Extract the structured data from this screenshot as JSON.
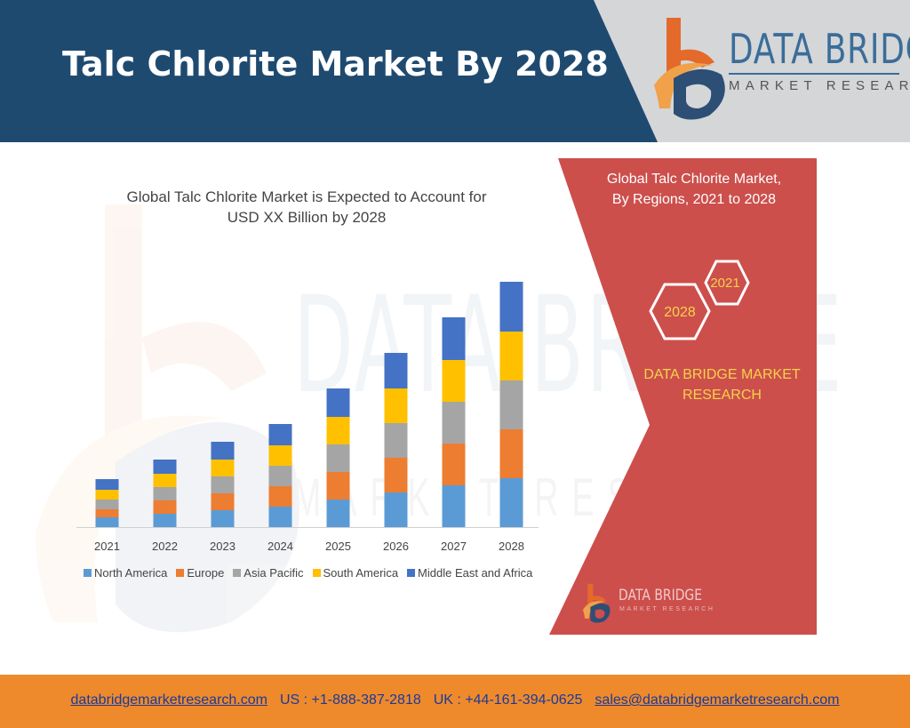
{
  "header": {
    "title": "Talc Chlorite Market By 2028",
    "brand_main": "DATA BRIDGE",
    "brand_sub": "MARKET RESEARCH"
  },
  "colors": {
    "header_band": "#1f4a70",
    "accent_orange": "#ee8a2c",
    "panel_red": "#cc4f4c",
    "panel_brand_text": "#f5d24a"
  },
  "chart_data": {
    "type": "bar",
    "stacked": true,
    "title": "Global Talc Chlorite Market is Expected to Account for USD XX Billion by 2028",
    "title_lines": [
      "Global Talc Chlorite Market is Expected to Account for",
      "USD XX Billion by 2028"
    ],
    "categories": [
      "2021",
      "2022",
      "2023",
      "2024",
      "2025",
      "2026",
      "2027",
      "2028"
    ],
    "series": [
      {
        "name": "North America",
        "color": "#5b9bd5",
        "values": [
          11,
          15,
          19,
          23,
          31,
          39,
          47,
          55
        ]
      },
      {
        "name": "Europe",
        "color": "#ed7d31",
        "values": [
          9,
          15,
          19,
          23,
          31,
          39,
          47,
          55
        ]
      },
      {
        "name": "Asia Pacific",
        "color": "#a5a5a5",
        "values": [
          11,
          15,
          19,
          23,
          31,
          39,
          47,
          55
        ]
      },
      {
        "name": "South America",
        "color": "#ffc000",
        "values": [
          11,
          15,
          19,
          23,
          31,
          39,
          47,
          55
        ]
      },
      {
        "name": "Middle East and Africa",
        "color": "#4472c4",
        "values": [
          12,
          16,
          20,
          24,
          32,
          40,
          48,
          56
        ]
      }
    ],
    "legend": "bottom",
    "grid": false,
    "ylim": [
      0,
      290
    ]
  },
  "panel": {
    "title_lines": [
      "Global Talc Chlorite Market,",
      "By Regions, 2021 to 2028"
    ],
    "hex_left": "2028",
    "hex_right": "2021",
    "brand_lines": [
      "DATA BRIDGE MARKET",
      "RESEARCH"
    ],
    "logo_text": "DATA BRIDGE",
    "logo_sub": "MARKET RESEARCH"
  },
  "footer": {
    "website": "databridgemarketresearch.com",
    "us_phone": "US : +1-888-387-2818",
    "uk_phone": "UK : +44-161-394-0625",
    "email": "sales@databridgemarketresearch.com"
  }
}
